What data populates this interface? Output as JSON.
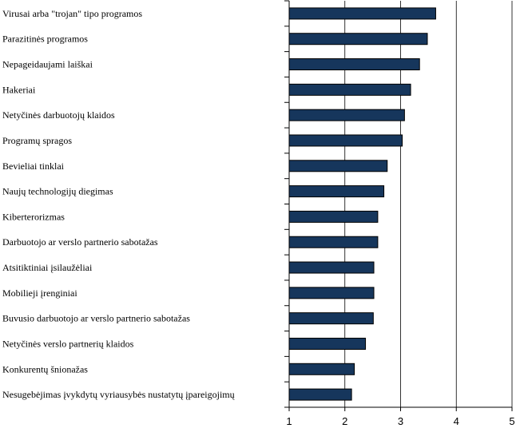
{
  "chart_data": {
    "type": "bar",
    "orientation": "horizontal",
    "categories": [
      "Virusai arba \"trojan\" tipo programos",
      "Parazitinės programos",
      "Nepageidaujami laiškai",
      "Hakeriai",
      "Netyčinės darbuotojų klaidos",
      "Programų spragos",
      "Bevieliai tinklai",
      "Naujų technologijų diegimas",
      "Kiberterorizmas",
      "Darbuotojo ar verslo partnerio sabotažas",
      "Atsitiktiniai įsilaužėliai",
      "Mobilieji įrenginiai",
      "Buvusio darbuotojo ar verslo partnerio sabotažas",
      "Netyčinės verslo partnerių klaidos",
      "Konkurentų šnionažas",
      "Nesugebėjimas įvykdytų vyriausybės nustatytų įpareigojimų"
    ],
    "values": [
      3.63,
      3.48,
      3.34,
      3.18,
      3.07,
      3.03,
      2.76,
      2.7,
      2.59,
      2.59,
      2.52,
      2.52,
      2.51,
      2.37,
      2.17,
      2.12
    ],
    "xlim": [
      1,
      5
    ],
    "xticks": [
      "1",
      "2",
      "3",
      "4",
      "5"
    ],
    "grid": true,
    "bar_color": "#16365c",
    "title": "",
    "xlabel": "",
    "ylabel": ""
  }
}
